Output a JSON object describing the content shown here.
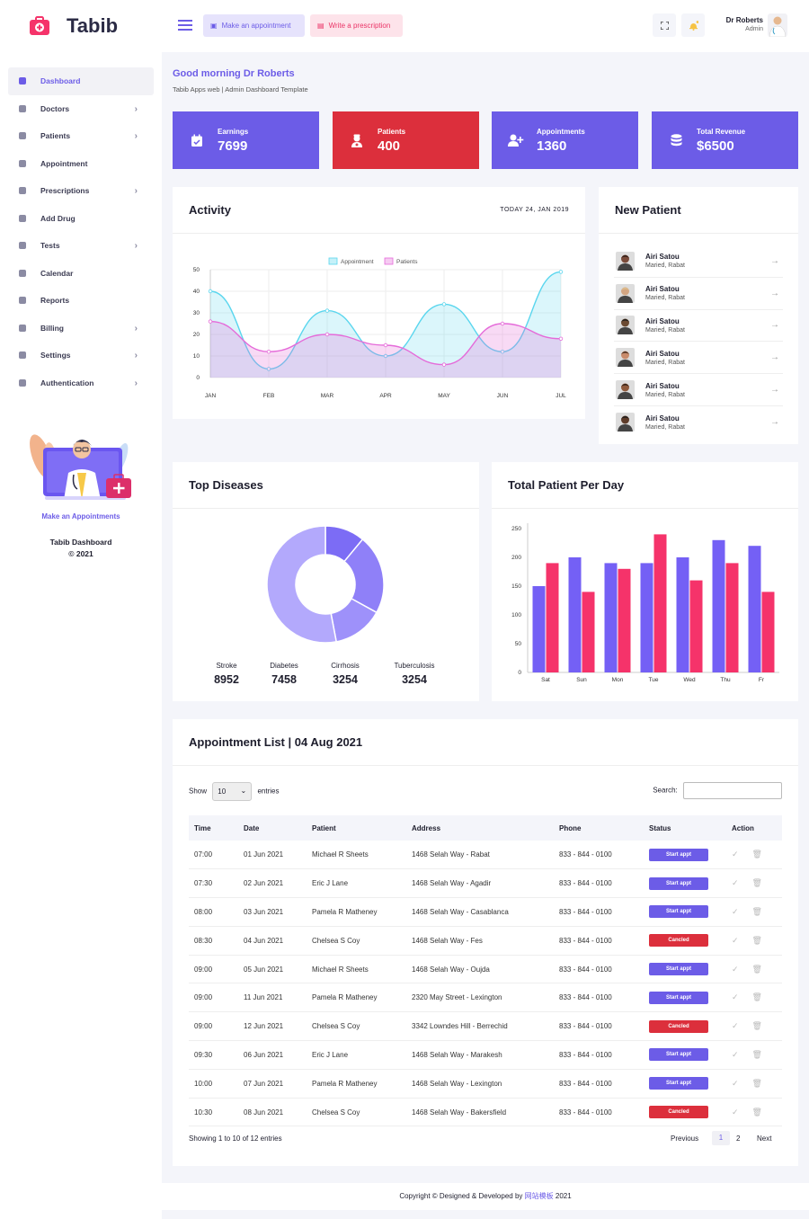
{
  "brand": {
    "name": "Tabib"
  },
  "sidebar": {
    "items": [
      {
        "label": "Dashboard",
        "icon": "grid-icon",
        "chevron": false,
        "active": true
      },
      {
        "label": "Doctors",
        "icon": "user-icon",
        "chevron": true
      },
      {
        "label": "Patients",
        "icon": "users-icon",
        "chevron": true
      },
      {
        "label": "Appointment",
        "icon": "calendar-icon",
        "chevron": false
      },
      {
        "label": "Prescriptions",
        "icon": "book-icon",
        "chevron": true
      },
      {
        "label": "Add Drug",
        "icon": "pills-icon",
        "chevron": false
      },
      {
        "label": "Tests",
        "icon": "heartbeat-icon",
        "chevron": true
      },
      {
        "label": "Calendar",
        "icon": "calendar-icon",
        "chevron": false
      },
      {
        "label": "Reports",
        "icon": "pie-chart-icon",
        "chevron": false
      },
      {
        "label": "Billing",
        "icon": "file-icon",
        "chevron": true
      },
      {
        "label": "Settings",
        "icon": "gear-icon",
        "chevron": true
      },
      {
        "label": "Authentication",
        "icon": "tag-icon",
        "chevron": true
      }
    ],
    "promo": {
      "link": "Make an Appointments",
      "title": "Tabib Dashboard",
      "year": "© 2021"
    }
  },
  "topbar": {
    "appointment_btn": "Make an appointment",
    "prescription_btn": "Write a prescription",
    "user_name": "Dr Roberts",
    "user_role": "Admin"
  },
  "greeting": {
    "title": "Good morning Dr Roberts",
    "subtitle": "Tabib Apps web | Admin Dashboard Template"
  },
  "stats": [
    {
      "label": "Earnings",
      "value": "7699",
      "color": "#6c5ce7",
      "icon": "calendar-check-icon"
    },
    {
      "label": "Patients",
      "value": "400",
      "color": "#dc2f3c",
      "icon": "user-nurse-icon"
    },
    {
      "label": "Appointments",
      "value": "1360",
      "color": "#6c5ce7",
      "icon": "user-plus-icon"
    },
    {
      "label": "Total Revenue",
      "value": "$6500",
      "color": "#6c5ce7",
      "icon": "database-icon"
    }
  ],
  "activity": {
    "title": "Activity",
    "date": "TODAY 24, JAN 2019"
  },
  "new_patient": {
    "title": "New Patient",
    "items": [
      {
        "name": "Airi Satou",
        "location": "Maried, Rabat"
      },
      {
        "name": "Airi Satou",
        "location": "Maried, Rabat"
      },
      {
        "name": "Airi Satou",
        "location": "Maried, Rabat"
      },
      {
        "name": "Airi Satou",
        "location": "Maried, Rabat"
      },
      {
        "name": "Airi Satou",
        "location": "Maried, Rabat"
      },
      {
        "name": "Airi Satou",
        "location": "Maried, Rabat"
      }
    ]
  },
  "top_diseases": {
    "title": "Top Diseases",
    "items": [
      {
        "label": "Stroke",
        "value": "8952"
      },
      {
        "label": "Diabetes",
        "value": "7458"
      },
      {
        "label": "Cirrhosis",
        "value": "3254"
      },
      {
        "label": "Tuberculosis",
        "value": "3254"
      }
    ]
  },
  "patients_per_day": {
    "title": "Total Patient Per Day"
  },
  "chart_data": [
    {
      "type": "area",
      "categories": [
        "JAN",
        "FEB",
        "MAR",
        "APR",
        "MAY",
        "JUN",
        "JUL"
      ],
      "ylim": [
        0,
        50
      ],
      "yticks": [
        0,
        10,
        20,
        30,
        40,
        50
      ],
      "series": [
        {
          "name": "Appointment",
          "values": [
            40,
            4,
            31,
            10,
            34,
            12,
            49
          ],
          "color": "#5ad6ee"
        },
        {
          "name": "Patients",
          "values": [
            26,
            12,
            20,
            15,
            6,
            25,
            18
          ],
          "color": "#e56ad9"
        }
      ]
    },
    {
      "type": "pie",
      "values": [
        11,
        22,
        14,
        53
      ],
      "colors": [
        "#7c6cf5",
        "#8f80f8",
        "#9e91fa",
        "#b3a9fc"
      ]
    },
    {
      "type": "bar",
      "categories": [
        "Sat",
        "Sun",
        "Mon",
        "Tue",
        "Wed",
        "Thu",
        "Fr"
      ],
      "ylim": [
        0,
        250
      ],
      "yticks": [
        0,
        50,
        100,
        150,
        200,
        250
      ],
      "series": [
        {
          "values": [
            150,
            200,
            190,
            190,
            200,
            230,
            220
          ],
          "color": "#7460f5"
        },
        {
          "values": [
            190,
            140,
            180,
            240,
            160,
            190,
            140
          ],
          "color": "#f5336a"
        }
      ]
    }
  ],
  "appointments": {
    "title": "Appointment List | 04 Aug 2021",
    "show_label": "Show",
    "entries_value": "10",
    "entries_label": "entries",
    "search_label": "Search:",
    "columns": [
      "Time",
      "Date",
      "Patient",
      "Address",
      "Phone",
      "Status",
      "Action"
    ],
    "rows": [
      {
        "time": "07:00",
        "date": "01 Jun 2021",
        "patient": "Michael R Sheets",
        "address": "1468 Selah Way - Rabat",
        "phone": "833 - 844 - 0100",
        "status": "Start appt"
      },
      {
        "time": "07:30",
        "date": "02 Jun 2021",
        "patient": "Eric J Lane",
        "address": "1468 Selah Way - Agadir",
        "phone": "833 - 844 - 0100",
        "status": "Start appt"
      },
      {
        "time": "08:00",
        "date": "03 Jun 2021",
        "patient": "Pamela R Matheney",
        "address": "1468 Selah Way - Casablanca",
        "phone": "833 - 844 - 0100",
        "status": "Start appt"
      },
      {
        "time": "08:30",
        "date": "04 Jun 2021",
        "patient": "Chelsea S Coy",
        "address": "1468 Selah Way - Fes",
        "phone": "833 - 844 - 0100",
        "status": "Cancled"
      },
      {
        "time": "09:00",
        "date": "05 Jun 2021",
        "patient": "Michael R Sheets",
        "address": "1468 Selah Way - Oujda",
        "phone": "833 - 844 - 0100",
        "status": "Start appt"
      },
      {
        "time": "09:00",
        "date": "11 Jun 2021",
        "patient": "Pamela R Matheney",
        "address": "2320 May Street - Lexington",
        "phone": "833 - 844 - 0100",
        "status": "Start appt"
      },
      {
        "time": "09:00",
        "date": "12 Jun 2021",
        "patient": "Chelsea S Coy",
        "address": "3342 Lowndes Hill - Berrechid",
        "phone": "833 - 844 - 0100",
        "status": "Cancled"
      },
      {
        "time": "09:30",
        "date": "06 Jun 2021",
        "patient": "Eric J Lane",
        "address": "1468 Selah Way - Marakesh",
        "phone": "833 - 844 - 0100",
        "status": "Start appt"
      },
      {
        "time": "10:00",
        "date": "07 Jun 2021",
        "patient": "Pamela R Matheney",
        "address": "1468 Selah Way - Lexington",
        "phone": "833 - 844 - 0100",
        "status": "Start appt"
      },
      {
        "time": "10:30",
        "date": "08 Jun 2021",
        "patient": "Chelsea S Coy",
        "address": "1468 Selah Way - Bakersfield",
        "phone": "833 - 844 - 0100",
        "status": "Cancled"
      }
    ],
    "info": "Showing 1 to 10 of 12 entries",
    "pagination": {
      "previous": "Previous",
      "pages": [
        "1",
        "2"
      ],
      "next": "Next"
    }
  },
  "footer": {
    "text_prefix": "Copyright © Designed & Developed by",
    "link": "网站模板",
    "year": "2021"
  }
}
